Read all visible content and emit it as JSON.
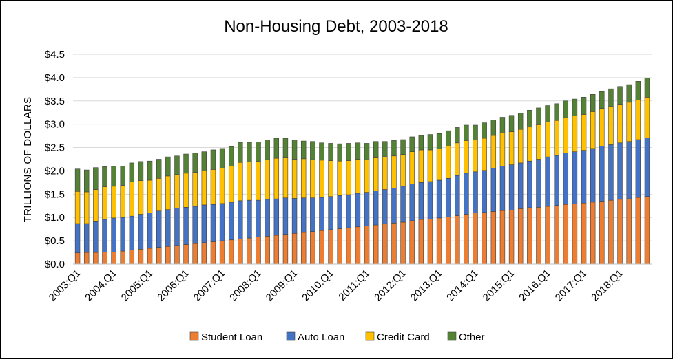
{
  "chart_data": {
    "type": "bar",
    "stacked": true,
    "title": "Non-Housing  Debt, 2003-2018",
    "xlabel": "",
    "ylabel": "TRILLIONS OF DOLLARS",
    "ylim": [
      0,
      4.5
    ],
    "yticks": [
      0,
      0.5,
      1.0,
      1.5,
      2.0,
      2.5,
      3.0,
      3.5,
      4.0,
      4.5
    ],
    "ytick_labels": [
      "$0.0",
      "$0.5",
      "$1.0",
      "$1.5",
      "$2.0",
      "$2.5",
      "$3.0",
      "$3.5",
      "$4.0",
      "$4.5"
    ],
    "grid": true,
    "legend_position": "bottom",
    "category_labels": [
      "2003:Q1",
      "2004:Q1",
      "2005:Q1",
      "2006:Q1",
      "2007:Q1",
      "2008:Q1",
      "2009:Q1",
      "2010:Q1",
      "2011:Q1",
      "2012:Q1",
      "2013:Q1",
      "2014:Q1",
      "2015:Q1",
      "2016:Q1",
      "2017:Q1",
      "2018:Q1"
    ],
    "label_every": 4,
    "num_quarters": 64,
    "series": [
      {
        "name": "Student Loan",
        "color": "#ED7D31",
        "values": [
          0.24,
          0.25,
          0.25,
          0.26,
          0.26,
          0.28,
          0.3,
          0.32,
          0.34,
          0.36,
          0.38,
          0.4,
          0.42,
          0.44,
          0.46,
          0.48,
          0.5,
          0.52,
          0.54,
          0.56,
          0.58,
          0.6,
          0.62,
          0.64,
          0.66,
          0.68,
          0.7,
          0.72,
          0.74,
          0.76,
          0.78,
          0.8,
          0.82,
          0.84,
          0.86,
          0.88,
          0.9,
          0.93,
          0.96,
          0.97,
          0.99,
          1.01,
          1.04,
          1.07,
          1.1,
          1.11,
          1.13,
          1.15,
          1.16,
          1.19,
          1.21,
          1.22,
          1.24,
          1.26,
          1.28,
          1.29,
          1.31,
          1.33,
          1.35,
          1.37,
          1.39,
          1.4,
          1.43,
          1.45
        ]
      },
      {
        "name": "Auto Loan",
        "color": "#4472C4",
        "values": [
          0.63,
          0.62,
          0.66,
          0.7,
          0.73,
          0.72,
          0.73,
          0.75,
          0.76,
          0.78,
          0.79,
          0.8,
          0.8,
          0.8,
          0.81,
          0.8,
          0.8,
          0.81,
          0.82,
          0.81,
          0.79,
          0.79,
          0.78,
          0.78,
          0.75,
          0.74,
          0.72,
          0.71,
          0.71,
          0.71,
          0.71,
          0.72,
          0.72,
          0.73,
          0.74,
          0.75,
          0.77,
          0.79,
          0.79,
          0.8,
          0.81,
          0.83,
          0.86,
          0.88,
          0.88,
          0.9,
          0.93,
          0.95,
          0.97,
          0.98,
          1.0,
          1.03,
          1.06,
          1.07,
          1.1,
          1.12,
          1.13,
          1.15,
          1.18,
          1.19,
          1.21,
          1.23,
          1.24,
          1.26
        ]
      },
      {
        "name": "Credit Card",
        "color": "#FFC000",
        "values": [
          0.69,
          0.68,
          0.69,
          0.7,
          0.68,
          0.69,
          0.73,
          0.72,
          0.7,
          0.7,
          0.72,
          0.72,
          0.73,
          0.73,
          0.73,
          0.75,
          0.76,
          0.77,
          0.82,
          0.82,
          0.83,
          0.85,
          0.87,
          0.86,
          0.84,
          0.84,
          0.82,
          0.8,
          0.77,
          0.74,
          0.73,
          0.73,
          0.7,
          0.71,
          0.7,
          0.69,
          0.68,
          0.69,
          0.7,
          0.68,
          0.67,
          0.69,
          0.7,
          0.7,
          0.68,
          0.69,
          0.7,
          0.71,
          0.71,
          0.72,
          0.73,
          0.74,
          0.75,
          0.75,
          0.76,
          0.77,
          0.77,
          0.79,
          0.81,
          0.82,
          0.83,
          0.84,
          0.85,
          0.87
        ]
      },
      {
        "name": "Other",
        "color": "#548235",
        "values": [
          0.48,
          0.47,
          0.47,
          0.43,
          0.43,
          0.41,
          0.41,
          0.41,
          0.41,
          0.41,
          0.41,
          0.4,
          0.41,
          0.41,
          0.41,
          0.42,
          0.42,
          0.42,
          0.43,
          0.42,
          0.42,
          0.42,
          0.43,
          0.42,
          0.41,
          0.38,
          0.39,
          0.37,
          0.37,
          0.37,
          0.37,
          0.35,
          0.35,
          0.35,
          0.33,
          0.33,
          0.32,
          0.32,
          0.31,
          0.33,
          0.33,
          0.33,
          0.33,
          0.33,
          0.32,
          0.33,
          0.33,
          0.34,
          0.35,
          0.35,
          0.36,
          0.36,
          0.35,
          0.36,
          0.36,
          0.36,
          0.37,
          0.37,
          0.36,
          0.38,
          0.38,
          0.38,
          0.4,
          0.41
        ]
      }
    ]
  }
}
